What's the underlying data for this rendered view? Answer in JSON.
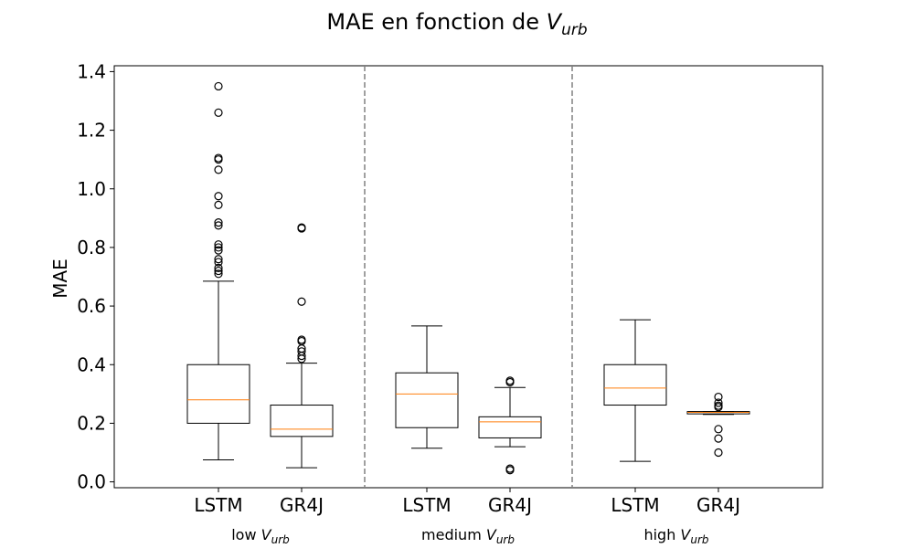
{
  "chart_data": {
    "type": "box",
    "title": {
      "text": "MAE en fonction de ",
      "var": "V",
      "sub": "urb"
    },
    "ylabel": "MAE",
    "xlabel": "",
    "ylim": [
      -0.02,
      1.42
    ],
    "yticks": [
      0.0,
      0.2,
      0.4,
      0.6,
      0.8,
      1.0,
      1.2,
      1.4
    ],
    "ytick_labels": [
      "0.0",
      "0.2",
      "0.4",
      "0.6",
      "0.8",
      "1.0",
      "1.2",
      "1.4"
    ],
    "grid": false,
    "separators": "dashed vertical lines between groups",
    "colors": {
      "box": "#000000",
      "median": "#ff7f0e",
      "separator": "#808080"
    },
    "groups": [
      {
        "prefix": "low ",
        "var": "V",
        "sub": "urb"
      },
      {
        "prefix": "medium ",
        "var": "V",
        "sub": "urb"
      },
      {
        "prefix": "high ",
        "var": "V",
        "sub": "urb"
      }
    ],
    "boxes": [
      {
        "group": 0,
        "label": "LSTM",
        "whisker_low": 0.075,
        "q1": 0.2,
        "median": 0.28,
        "q3": 0.4,
        "whisker_high": 0.685,
        "outliers": [
          0.71,
          0.72,
          0.73,
          0.75,
          0.76,
          0.79,
          0.8,
          0.81,
          0.875,
          0.885,
          0.945,
          0.975,
          1.065,
          1.1,
          1.105,
          1.26,
          1.35
        ]
      },
      {
        "group": 0,
        "label": "GR4J",
        "whisker_low": 0.048,
        "q1": 0.155,
        "median": 0.18,
        "q3": 0.262,
        "whisker_high": 0.405,
        "outliers": [
          0.42,
          0.43,
          0.445,
          0.455,
          0.48,
          0.485,
          0.615,
          0.865,
          0.868
        ]
      },
      {
        "group": 1,
        "label": "LSTM",
        "whisker_low": 0.115,
        "q1": 0.185,
        "median": 0.3,
        "q3": 0.372,
        "whisker_high": 0.532,
        "outliers": []
      },
      {
        "group": 1,
        "label": "GR4J",
        "whisker_low": 0.12,
        "q1": 0.15,
        "median": 0.205,
        "q3": 0.222,
        "whisker_high": 0.322,
        "outliers": [
          0.04,
          0.045,
          0.34,
          0.345
        ]
      },
      {
        "group": 2,
        "label": "LSTM",
        "whisker_low": 0.07,
        "q1": 0.262,
        "median": 0.32,
        "q3": 0.4,
        "whisker_high": 0.553,
        "outliers": []
      },
      {
        "group": 2,
        "label": "GR4J",
        "whisker_low": 0.23,
        "q1": 0.232,
        "median": 0.237,
        "q3": 0.24,
        "whisker_high": 0.24,
        "outliers": [
          0.1,
          0.148,
          0.18,
          0.255,
          0.26,
          0.27,
          0.29
        ]
      }
    ]
  }
}
